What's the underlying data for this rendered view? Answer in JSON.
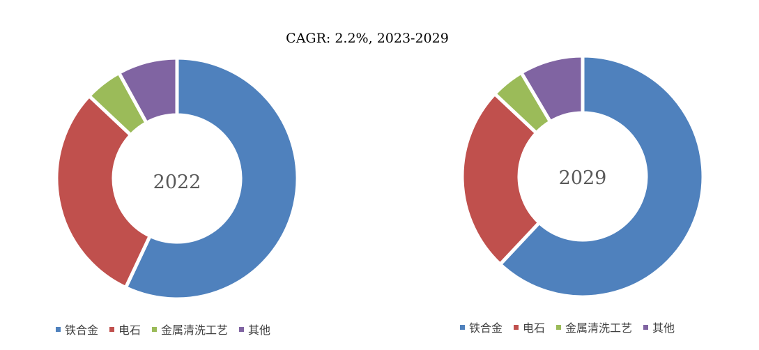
{
  "title": "CAGR: 2.2%, 2023-2029",
  "colors": [
    "#4F81BD",
    "#C0504D",
    "#9BBB59",
    "#8064A2"
  ],
  "chart_data": [
    {
      "type": "pie",
      "variant": "doughnut",
      "center_label": "2022",
      "categories": [
        "铁合金",
        "电石",
        "金属清洗工艺",
        "其他"
      ],
      "values": [
        57,
        30,
        5,
        8
      ],
      "legend": "bottom"
    },
    {
      "type": "pie",
      "variant": "doughnut",
      "center_label": "2029",
      "categories": [
        "铁合金",
        "电石",
        "金属清洗工艺",
        "其他"
      ],
      "values": [
        62,
        25,
        4.5,
        8.5
      ],
      "legend": "bottom"
    }
  ]
}
